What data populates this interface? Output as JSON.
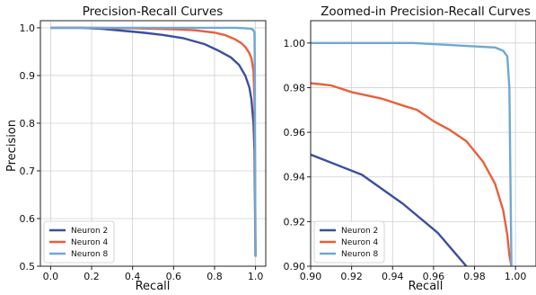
{
  "chart_data": [
    {
      "type": "line",
      "title": "Precision-Recall Curves",
      "xlabel": "Recall",
      "ylabel": "Precision",
      "xlim": [
        -0.05,
        1.05
      ],
      "ylim": [
        0.5,
        1.015
      ],
      "xticks": [
        0.0,
        0.2,
        0.4,
        0.6,
        0.8,
        1.0
      ],
      "xtick_labels": [
        "0.0",
        "0.2",
        "0.4",
        "0.6",
        "0.8",
        "1.0"
      ],
      "yticks": [
        0.5,
        0.6,
        0.7,
        0.8,
        0.9,
        1.0
      ],
      "ytick_labels": [
        "0.5",
        "0.6",
        "0.7",
        "0.8",
        "0.9",
        "1.0"
      ],
      "grid": true,
      "legend_position": "lower-left",
      "series": [
        {
          "name": "Neuron 2",
          "color": "#3b4f9e",
          "x": [
            0.0,
            0.15,
            0.25,
            0.35,
            0.45,
            0.55,
            0.65,
            0.75,
            0.82,
            0.88,
            0.92,
            0.95,
            0.97,
            0.98,
            0.99,
            0.995,
            0.998,
            1.0
          ],
          "y": [
            1.0,
            1.0,
            0.998,
            0.994,
            0.99,
            0.985,
            0.978,
            0.966,
            0.952,
            0.938,
            0.922,
            0.9,
            0.875,
            0.85,
            0.8,
            0.74,
            0.6,
            0.52
          ]
        },
        {
          "name": "Neuron 4",
          "color": "#e8603c",
          "x": [
            0.0,
            0.2,
            0.4,
            0.6,
            0.7,
            0.8,
            0.85,
            0.9,
            0.93,
            0.95,
            0.97,
            0.98,
            0.99,
            0.995,
            0.998,
            1.0
          ],
          "y": [
            1.0,
            1.0,
            0.999,
            0.997,
            0.995,
            0.99,
            0.985,
            0.976,
            0.968,
            0.96,
            0.947,
            0.936,
            0.91,
            0.85,
            0.7,
            0.52
          ]
        },
        {
          "name": "Neuron 8",
          "color": "#6fa8d4",
          "x": [
            0.0,
            0.2,
            0.4,
            0.6,
            0.8,
            0.9,
            0.95,
            0.98,
            0.99,
            0.995,
            0.997,
            0.998,
            1.0
          ],
          "y": [
            1.0,
            1.0,
            1.0,
            1.0,
            1.0,
            1.0,
            0.999,
            0.998,
            0.995,
            0.99,
            0.9,
            0.7,
            0.52
          ]
        }
      ]
    },
    {
      "type": "line",
      "title": "Zoomed-in Precision-Recall Curves",
      "xlabel": "Recall",
      "ylabel": "",
      "xlim": [
        0.9,
        1.01
      ],
      "ylim": [
        0.9,
        1.01
      ],
      "xticks": [
        0.9,
        0.92,
        0.94,
        0.96,
        0.98,
        1.0
      ],
      "xtick_labels": [
        "0.90",
        "0.92",
        "0.94",
        "0.96",
        "0.98",
        "1.00"
      ],
      "yticks": [
        0.9,
        0.92,
        0.94,
        0.96,
        0.98,
        1.0
      ],
      "ytick_labels": [
        "0.90",
        "0.92",
        "0.94",
        "0.96",
        "0.98",
        "1.00"
      ],
      "grid": true,
      "legend_position": "lower-left",
      "series": [
        {
          "name": "Neuron 2",
          "color": "#3b4f9e",
          "x": [
            0.9,
            0.925,
            0.945,
            0.962,
            0.976
          ],
          "y": [
            0.95,
            0.941,
            0.928,
            0.915,
            0.9
          ]
        },
        {
          "name": "Neuron 4",
          "color": "#e8603c",
          "x": [
            0.9,
            0.91,
            0.92,
            0.935,
            0.945,
            0.952,
            0.96,
            0.968,
            0.976,
            0.984,
            0.99,
            0.994,
            0.996,
            0.997,
            0.998
          ],
          "y": [
            0.982,
            0.981,
            0.978,
            0.975,
            0.972,
            0.97,
            0.965,
            0.961,
            0.956,
            0.947,
            0.937,
            0.925,
            0.914,
            0.905,
            0.9
          ]
        },
        {
          "name": "Neuron 8",
          "color": "#6fa8d4",
          "x": [
            0.9,
            0.92,
            0.94,
            0.95,
            0.96,
            0.97,
            0.98,
            0.99,
            0.994,
            0.996,
            0.997,
            0.9975,
            0.998
          ],
          "y": [
            1.0,
            1.0,
            1.0,
            1.0,
            0.9995,
            0.999,
            0.9985,
            0.998,
            0.9965,
            0.994,
            0.98,
            0.94,
            0.9
          ]
        }
      ]
    }
  ]
}
